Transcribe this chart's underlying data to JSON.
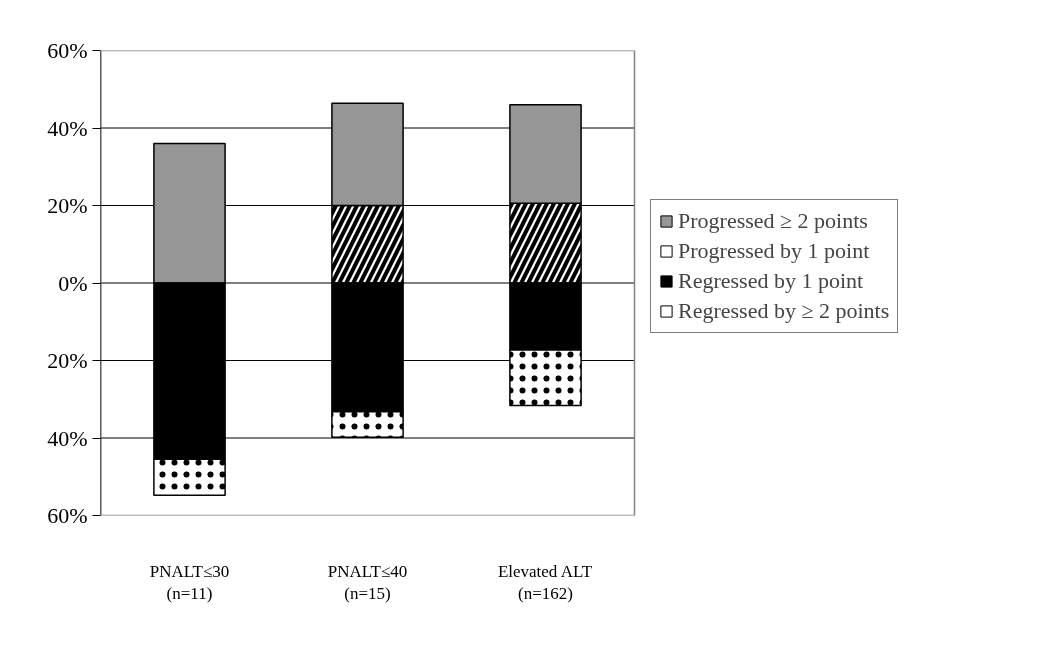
{
  "chart_data": {
    "type": "bar",
    "stacked": true,
    "categories": [
      "PNALT≤30\n(n=11)",
      "PNALT≤40\n(n=15)",
      "Elevated ALT\n(n=162)"
    ],
    "series": [
      {
        "name": "Progressed by 1 point",
        "color": "#ffffff",
        "values": [
          0,
          20,
          20.6
        ]
      },
      {
        "name": "Progressed ≥ 2 points",
        "color": "#969696",
        "values": [
          36,
          26.4,
          25.4
        ]
      },
      {
        "name": "Regressed by 1 point",
        "color": "#000000",
        "values": [
          -45.5,
          -33.2,
          -17.3
        ]
      },
      {
        "name": "Regressed by ≥ 2 points",
        "color": "#ffffff",
        "values": [
          -9.3,
          -6.6,
          -14.3
        ]
      }
    ],
    "ylim": [
      -60,
      60
    ],
    "yticks": [
      {
        "value": -60,
        "label": "60%"
      },
      {
        "value": -40,
        "label": "40%"
      },
      {
        "value": -20,
        "label": "20%"
      },
      {
        "value": 0,
        "label": "0%"
      },
      {
        "value": 20,
        "label": "20%"
      },
      {
        "value": 40,
        "label": "40%"
      },
      {
        "value": 60,
        "label": "60%"
      }
    ],
    "grid": "y",
    "legend": "right"
  }
}
